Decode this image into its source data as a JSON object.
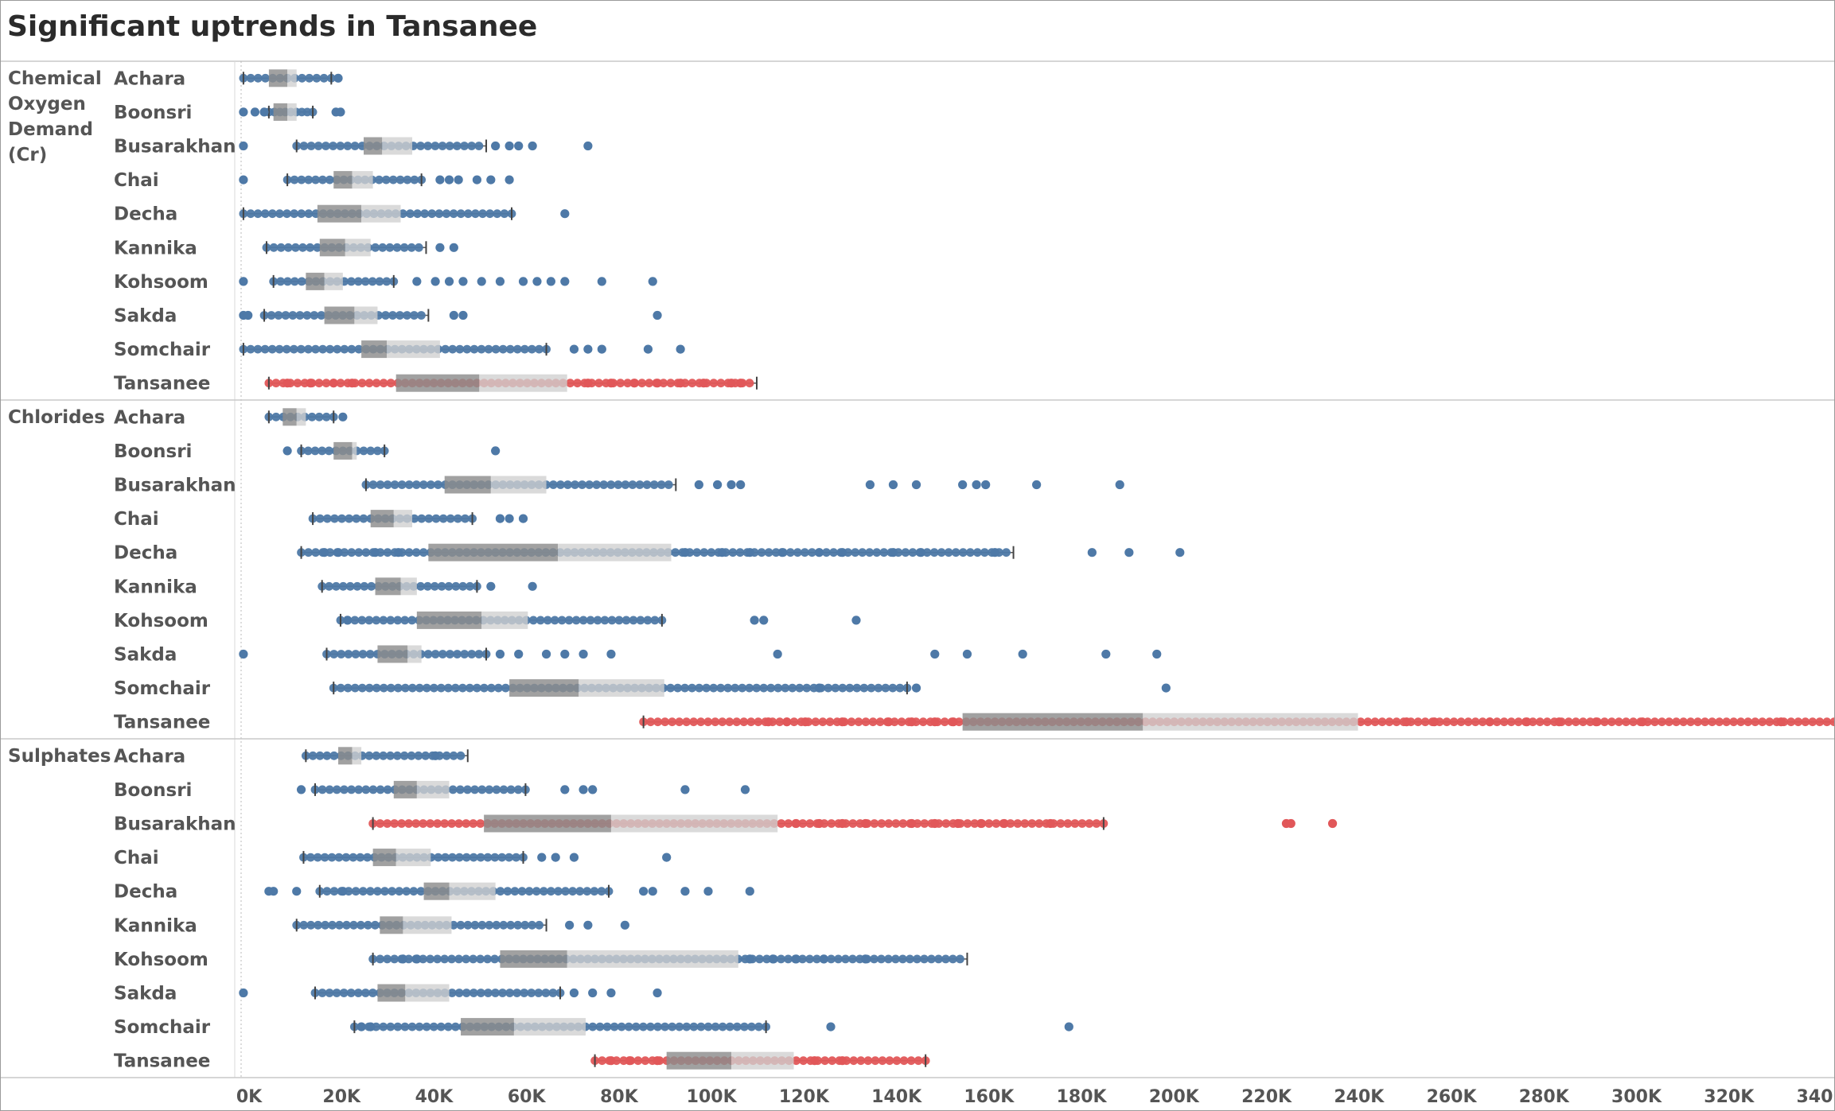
{
  "chart_data": {
    "type": "boxplot",
    "title": "Significant uptrends in Tansanee",
    "xlabel": "",
    "ylabel": "",
    "xlim": [
      0,
      340000
    ],
    "x_ticks": [
      0,
      20000,
      40000,
      60000,
      80000,
      100000,
      120000,
      140000,
      160000,
      180000,
      200000,
      220000,
      240000,
      260000,
      280000,
      300000,
      320000,
      340000
    ],
    "x_tick_labels": [
      "0K",
      "20K",
      "40K",
      "60K",
      "80K",
      "100K",
      "120K",
      "140K",
      "160K",
      "180K",
      "200K",
      "220K",
      "240K",
      "260K",
      "280K",
      "300K",
      "320K",
      "340K"
    ],
    "grid": false,
    "colors": {
      "normal": "#4e79a7",
      "highlight": "#e15759",
      "box_dark": "#8c8c8c",
      "box_light": "#d0d0d0"
    },
    "groups": [
      {
        "name": "Chemical Oxygen Demand (Cr)",
        "name_lines": [
          "Chemical",
          "Oxygen",
          "Demand",
          "(Cr)"
        ],
        "rows": [
          {
            "name": "Achara",
            "highlight": false,
            "whisker_low": 500,
            "q1": 6000,
            "median": 10000,
            "q3": 12000,
            "whisker_high": 19500,
            "outliers": [
              21000
            ]
          },
          {
            "name": "Boonsri",
            "highlight": false,
            "whisker_low": 6000,
            "q1": 7000,
            "median": 10000,
            "q3": 12000,
            "whisker_high": 15500,
            "outliers": [
              500,
              3000,
              5000,
              20500,
              21500
            ]
          },
          {
            "name": "Busarakhan",
            "highlight": false,
            "whisker_low": 12000,
            "q1": 26500,
            "median": 30500,
            "q3": 37000,
            "whisker_high": 53000,
            "outliers": [
              500,
              55000,
              58000,
              60000,
              63000,
              75000
            ]
          },
          {
            "name": "Chai",
            "highlight": false,
            "whisker_low": 10000,
            "q1": 20000,
            "median": 24000,
            "q3": 28500,
            "whisker_high": 39000,
            "outliers": [
              500,
              43000,
              45000,
              47000,
              51000,
              54000,
              58000
            ]
          },
          {
            "name": "Decha",
            "highlight": false,
            "whisker_low": 500,
            "q1": 16500,
            "median": 26000,
            "q3": 34500,
            "whisker_high": 58500,
            "outliers": [
              70000
            ]
          },
          {
            "name": "Kannika",
            "highlight": false,
            "whisker_low": 5500,
            "q1": 17000,
            "median": 22500,
            "q3": 28000,
            "whisker_high": 40000,
            "outliers": [
              43000,
              46000
            ]
          },
          {
            "name": "Kohsoom",
            "highlight": false,
            "whisker_low": 7000,
            "q1": 14000,
            "median": 18000,
            "q3": 22000,
            "whisker_high": 33000,
            "outliers": [
              500,
              38000,
              42000,
              45000,
              48000,
              52000,
              56000,
              61000,
              64000,
              67000,
              70000,
              78000,
              89000
            ]
          },
          {
            "name": "Sakda",
            "highlight": false,
            "whisker_low": 5000,
            "q1": 18000,
            "median": 24500,
            "q3": 29500,
            "whisker_high": 40500,
            "outliers": [
              500,
              1500,
              46000,
              48000,
              90000
            ]
          },
          {
            "name": "Somchair",
            "highlight": false,
            "whisker_low": 500,
            "q1": 26000,
            "median": 31500,
            "q3": 43000,
            "whisker_high": 66000,
            "outliers": [
              72000,
              75000,
              78000,
              88000,
              95000
            ]
          },
          {
            "name": "Tansanee",
            "highlight": true,
            "whisker_low": 6000,
            "q1": 33500,
            "median": 51500,
            "q3": 70500,
            "whisker_high": 111500,
            "outliers": [
              10000,
              15000,
              20000,
              24000,
              75000,
              80000,
              85000,
              90000,
              95000,
              100000,
              106000,
              108000
            ]
          }
        ]
      },
      {
        "name": "Chlorides",
        "name_lines": [
          "Chlorides"
        ],
        "rows": [
          {
            "name": "Achara",
            "highlight": false,
            "whisker_low": 6000,
            "q1": 9000,
            "median": 12000,
            "q3": 14000,
            "whisker_high": 20000,
            "outliers": [
              22000
            ]
          },
          {
            "name": "Boonsri",
            "highlight": false,
            "whisker_low": 13000,
            "q1": 20000,
            "median": 24000,
            "q3": 25000,
            "whisker_high": 31000,
            "outliers": [
              10000,
              55000
            ]
          },
          {
            "name": "Busarakhan",
            "highlight": false,
            "whisker_low": 27000,
            "q1": 44000,
            "median": 54000,
            "q3": 66000,
            "whisker_high": 94000,
            "outliers": [
              99000,
              103000,
              106000,
              108000,
              136000,
              141000,
              146000,
              156000,
              159000,
              161000,
              172000,
              190000
            ]
          },
          {
            "name": "Chai",
            "highlight": false,
            "whisker_low": 15500,
            "q1": 28000,
            "median": 33000,
            "q3": 37000,
            "whisker_high": 50000,
            "outliers": [
              56000,
              58000,
              61000
            ]
          },
          {
            "name": "Decha",
            "highlight": false,
            "whisker_low": 13000,
            "q1": 40500,
            "median": 68500,
            "q3": 93000,
            "whisker_high": 167000,
            "outliers": [
              18000,
              21000,
              29000,
              34000,
              96000,
              104000,
              110000,
              117000,
              125000,
              130000,
              141000,
              147000,
              163000,
              184000,
              192000,
              203000
            ]
          },
          {
            "name": "Kannika",
            "highlight": false,
            "whisker_low": 17500,
            "q1": 29000,
            "median": 34500,
            "q3": 38000,
            "whisker_high": 51000,
            "outliers": [
              54000,
              63000
            ]
          },
          {
            "name": "Kohsoom",
            "highlight": false,
            "whisker_low": 21500,
            "q1": 38000,
            "median": 52000,
            "q3": 62000,
            "whisker_high": 91000,
            "outliers": [
              23000,
              111000,
              113000,
              133000
            ]
          },
          {
            "name": "Sakda",
            "highlight": false,
            "whisker_low": 18500,
            "q1": 29500,
            "median": 36000,
            "q3": 39000,
            "whisker_high": 53000,
            "outliers": [
              500,
              56000,
              60000,
              66000,
              70000,
              74000,
              80000,
              116000,
              150000,
              157000,
              169000,
              187000,
              198000
            ]
          },
          {
            "name": "Somchair",
            "highlight": false,
            "whisker_low": 20000,
            "q1": 58000,
            "median": 73000,
            "q3": 91500,
            "whisker_high": 144000,
            "outliers": [
              125000,
              146000,
              200000
            ]
          },
          {
            "name": "Tansanee",
            "highlight": true,
            "whisker_low": 87000,
            "q1": 156000,
            "median": 195000,
            "q3": 241500,
            "whisker_high": 346000,
            "outliers": [
              114000,
              118000,
              122000,
              130000,
              140000,
              145000,
              150000,
              154000,
              252000,
              258000,
              270000,
              278000,
              285000,
              293000,
              303000,
              333000
            ]
          }
        ]
      },
      {
        "name": "Sulphates",
        "name_lines": [
          "Sulphates"
        ],
        "rows": [
          {
            "name": "Achara",
            "highlight": false,
            "whisker_low": 14000,
            "q1": 21000,
            "median": 24000,
            "q3": 26000,
            "whisker_high": 49000,
            "outliers": [
              42000
            ]
          },
          {
            "name": "Boonsri",
            "highlight": false,
            "whisker_low": 16000,
            "q1": 33000,
            "median": 38000,
            "q3": 45000,
            "whisker_high": 61500,
            "outliers": [
              13000,
              70000,
              74000,
              76000,
              96000,
              109000
            ]
          },
          {
            "name": "Busarakhan",
            "highlight": true,
            "whisker_low": 28500,
            "q1": 52500,
            "median": 80000,
            "q3": 116000,
            "whisker_high": 186500,
            "outliers": [
              120000,
              125000,
              130000,
              135000,
              145000,
              150000,
              155000,
              160000,
              165000,
              175000,
              226000,
              227000,
              236000
            ]
          },
          {
            "name": "Chai",
            "highlight": false,
            "whisker_low": 13500,
            "q1": 28500,
            "median": 33500,
            "q3": 41000,
            "whisker_high": 61000,
            "outliers": [
              65000,
              68000,
              72000,
              92000
            ]
          },
          {
            "name": "Decha",
            "highlight": false,
            "whisker_low": 17000,
            "q1": 39500,
            "median": 45000,
            "q3": 55000,
            "whisker_high": 79500,
            "outliers": [
              6000,
              7000,
              12000,
              22000,
              87000,
              89000,
              96000,
              101000,
              110000
            ]
          },
          {
            "name": "Kannika",
            "highlight": false,
            "whisker_low": 12000,
            "q1": 30000,
            "median": 35000,
            "q3": 45500,
            "whisker_high": 66000,
            "outliers": [
              71000,
              75000,
              83000
            ]
          },
          {
            "name": "Kohsoom",
            "highlight": false,
            "whisker_low": 28500,
            "q1": 56000,
            "median": 70500,
            "q3": 107500,
            "whisker_high": 157000,
            "outliers": [
              35000,
              38000,
              110000,
              115000,
              120000,
              126000,
              135000
            ]
          },
          {
            "name": "Sakda",
            "highlight": false,
            "whisker_low": 16000,
            "q1": 29500,
            "median": 35500,
            "q3": 45000,
            "whisker_high": 69000,
            "outliers": [
              500,
              72000,
              76000,
              80000,
              90000
            ]
          },
          {
            "name": "Somchair",
            "highlight": false,
            "whisker_low": 24500,
            "q1": 47500,
            "median": 59000,
            "q3": 74500,
            "whisker_high": 113500,
            "outliers": [
              26000,
              28000,
              127500,
              179000
            ]
          },
          {
            "name": "Tansanee",
            "highlight": true,
            "whisker_low": 76500,
            "q1": 92000,
            "median": 106000,
            "q3": 119500,
            "whisker_high": 148000,
            "outliers": [
              80000,
              84000,
              90000,
              124000,
              130000
            ]
          }
        ]
      }
    ]
  }
}
